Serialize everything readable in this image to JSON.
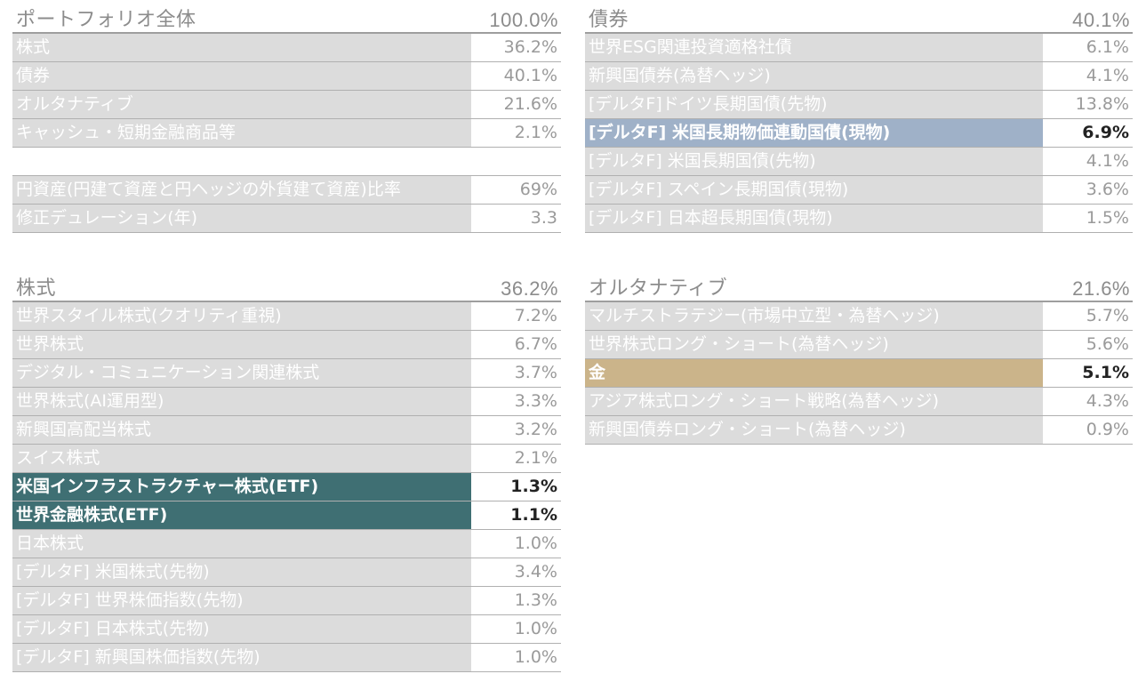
{
  "portfolio": {
    "title": "ポートフォリオ全体",
    "total": "100.0%",
    "rows": [
      {
        "label": "株式",
        "value": "36.2%"
      },
      {
        "label": "債券",
        "value": "40.1%"
      },
      {
        "label": "オルタナティブ",
        "value": "21.6%"
      },
      {
        "label": "キャッシュ・短期金融商品等",
        "value": "2.1%"
      }
    ],
    "extra_rows": [
      {
        "label": "円資産(円建て資産と円ヘッジの外貨建て資産)比率",
        "value": "69%"
      },
      {
        "label": "修正デュレーション(年)",
        "value": "3.3"
      }
    ]
  },
  "bonds": {
    "title": "債券",
    "total": "40.1%",
    "rows": [
      {
        "label": "世界ESG関連投資適格社債",
        "value": "6.1%"
      },
      {
        "label": "新興国債券(為替ヘッジ)",
        "value": "4.1%"
      },
      {
        "label": "[デルタF]ドイツ長期国債(先物)",
        "value": "13.8%"
      },
      {
        "label": "[デルタF] 米国長期物価連動国債(現物)",
        "value": "6.9%",
        "highlight": "blue"
      },
      {
        "label": "[デルタF] 米国長期国債(先物)",
        "value": "4.1%"
      },
      {
        "label": "[デルタF] スペイン長期国債(現物)",
        "value": "3.6%"
      },
      {
        "label": "[デルタF] 日本超長期国債(現物)",
        "value": "1.5%"
      }
    ]
  },
  "equities": {
    "title": "株式",
    "total": "36.2%",
    "rows": [
      {
        "label": "世界スタイル株式(クオリティ重視)",
        "value": "7.2%"
      },
      {
        "label": "世界株式",
        "value": "6.7%"
      },
      {
        "label": "デジタル・コミュニケーション関連株式",
        "value": "3.7%"
      },
      {
        "label": "世界株式(AI運用型)",
        "value": "3.3%"
      },
      {
        "label": "新興国高配当株式",
        "value": "3.2%"
      },
      {
        "label": "スイス株式",
        "value": "2.1%"
      },
      {
        "label": "米国インフラストラクチャー株式(ETF)",
        "value": "1.3%",
        "highlight": "teal"
      },
      {
        "label": "世界金融株式(ETF)",
        "value": "1.1%",
        "highlight": "teal"
      },
      {
        "label": "日本株式",
        "value": "1.0%"
      },
      {
        "label": "[デルタF] 米国株式(先物)",
        "value": "3.4%"
      },
      {
        "label": "[デルタF] 世界株価指数(先物)",
        "value": "1.3%"
      },
      {
        "label": "[デルタF] 日本株式(先物)",
        "value": "1.0%"
      },
      {
        "label": "[デルタF] 新興国株価指数(先物)",
        "value": "1.0%"
      }
    ]
  },
  "alternatives": {
    "title": "オルタナティブ",
    "total": "21.6%",
    "rows": [
      {
        "label": "マルチストラテジー(市場中立型・為替ヘッジ)",
        "value": "5.7%"
      },
      {
        "label": "世界株式ロング・ショート(為替ヘッジ)",
        "value": "5.6%"
      },
      {
        "label": "金",
        "value": "5.1%",
        "highlight": "gold"
      },
      {
        "label": "アジア株式ロング・ショート戦略(為替ヘッジ)",
        "value": "4.3%"
      },
      {
        "label": "新興国債券ロング・ショート(為替ヘッジ)",
        "value": "0.9%"
      }
    ]
  },
  "colors": {
    "row_bg": "#dcdcdc",
    "highlight_teal": "#3f6f73",
    "highlight_blue": "#9fb1c8",
    "highlight_gold": "#cbb48a"
  }
}
